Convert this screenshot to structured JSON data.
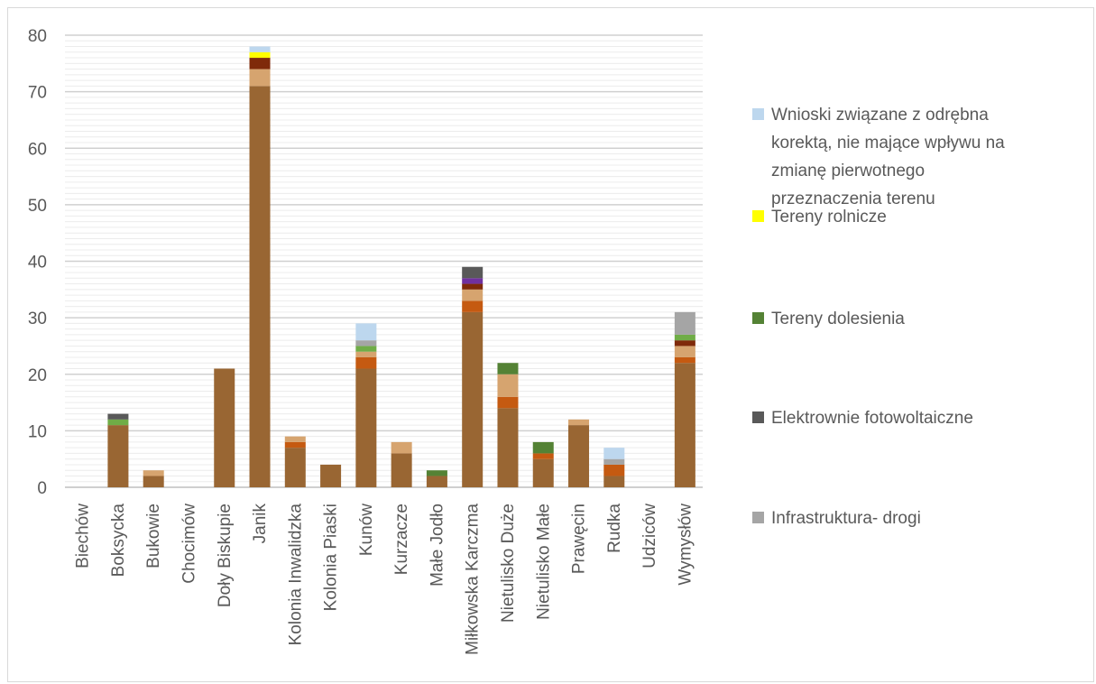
{
  "chart_data": {
    "type": "bar",
    "stacked": true,
    "categories": [
      "Biechów",
      "Boksycka",
      "Bukowie",
      "Chocimów",
      "Doły Biskupie",
      "Janik",
      "Kolonia Inwalidzka",
      "Kolonia Piaski",
      "Kunów",
      "Kurzacze",
      "Małe Jodło",
      "Miłkowska Karczma",
      "Nietulisko Duże",
      "Nietulisko Małe",
      "Prawęcin",
      "Rudka",
      "Udziców",
      "Wymysłów"
    ],
    "ylim": [
      0,
      80
    ],
    "yticks": [
      0,
      10,
      20,
      30,
      40,
      50,
      60,
      70,
      80
    ],
    "xlabel": "",
    "ylabel": "",
    "title": "",
    "grid": true,
    "legend_position": "right",
    "series": [
      {
        "name": "",
        "color": "#996633",
        "values": [
          0,
          11,
          2,
          0,
          21,
          71,
          7,
          4,
          21,
          6,
          2,
          31,
          14,
          5,
          11,
          2,
          0,
          22
        ]
      },
      {
        "name": "",
        "color": "#c55a11",
        "values": [
          0,
          0,
          0,
          0,
          0,
          0,
          1,
          0,
          2,
          0,
          0,
          2,
          2,
          1,
          0,
          2,
          0,
          1
        ]
      },
      {
        "name": "",
        "color": "#d6a46f",
        "values": [
          0,
          0,
          1,
          0,
          0,
          3,
          1,
          0,
          1,
          2,
          0,
          2,
          4,
          0,
          1,
          0,
          0,
          2
        ]
      },
      {
        "name": "",
        "color": "#7f2a0a",
        "values": [
          0,
          0,
          0,
          0,
          0,
          2,
          0,
          0,
          0,
          0,
          0,
          1,
          0,
          0,
          0,
          0,
          0,
          1
        ]
      },
      {
        "name": "",
        "color": "#7030a0",
        "values": [
          0,
          0,
          0,
          0,
          0,
          0,
          0,
          0,
          0,
          0,
          0,
          1,
          0,
          0,
          0,
          0,
          0,
          0
        ]
      },
      {
        "name": "",
        "color": "#70ad47",
        "values": [
          0,
          1,
          0,
          0,
          0,
          0,
          0,
          0,
          1,
          0,
          0,
          0,
          0,
          0,
          0,
          0,
          0,
          1
        ]
      },
      {
        "name": "Infrastruktura- drogi",
        "color": "#a5a5a5",
        "values": [
          0,
          0,
          0,
          0,
          0,
          0,
          0,
          0,
          1,
          0,
          0,
          0,
          0,
          0,
          0,
          1,
          0,
          4
        ]
      },
      {
        "name": "Elektrownie fotowoltaiczne",
        "color": "#595959",
        "values": [
          0,
          1,
          0,
          0,
          0,
          0,
          0,
          0,
          0,
          0,
          0,
          2,
          0,
          0,
          0,
          0,
          0,
          0
        ]
      },
      {
        "name": "Tereny dolesienia",
        "color": "#548235",
        "values": [
          0,
          0,
          0,
          0,
          0,
          0,
          0,
          0,
          0,
          0,
          1,
          0,
          2,
          2,
          0,
          0,
          0,
          0
        ]
      },
      {
        "name": "Tereny rolnicze",
        "color": "#ffff00",
        "values": [
          0,
          0,
          0,
          0,
          0,
          1,
          0,
          0,
          0,
          0,
          0,
          0,
          0,
          0,
          0,
          0,
          0,
          0
        ]
      },
      {
        "name": "Wnioski związane z odrębna korektą, nie mające wpływu na zmianę pierwotnego przeznaczenia terenu",
        "color": "#bdd7ee",
        "values": [
          0,
          0,
          0,
          0,
          0,
          1,
          0,
          0,
          3,
          0,
          0,
          0,
          0,
          0,
          0,
          2,
          0,
          0
        ]
      }
    ],
    "legend": [
      {
        "label_lines": [
          "Wnioski związane z odrębna",
          "korektą, nie mające wpływu na",
          "zmianę pierwotnego",
          "przeznaczenia terenu"
        ],
        "color": "#bdd7ee"
      },
      {
        "label_lines": [
          "Tereny rolnicze"
        ],
        "color": "#ffff00"
      },
      {
        "label_lines": [
          "Tereny dolesienia"
        ],
        "color": "#548235"
      },
      {
        "label_lines": [
          "Elektrownie fotowoltaiczne"
        ],
        "color": "#595959"
      },
      {
        "label_lines": [
          "Infrastruktura- drogi"
        ],
        "color": "#a5a5a5"
      }
    ]
  }
}
